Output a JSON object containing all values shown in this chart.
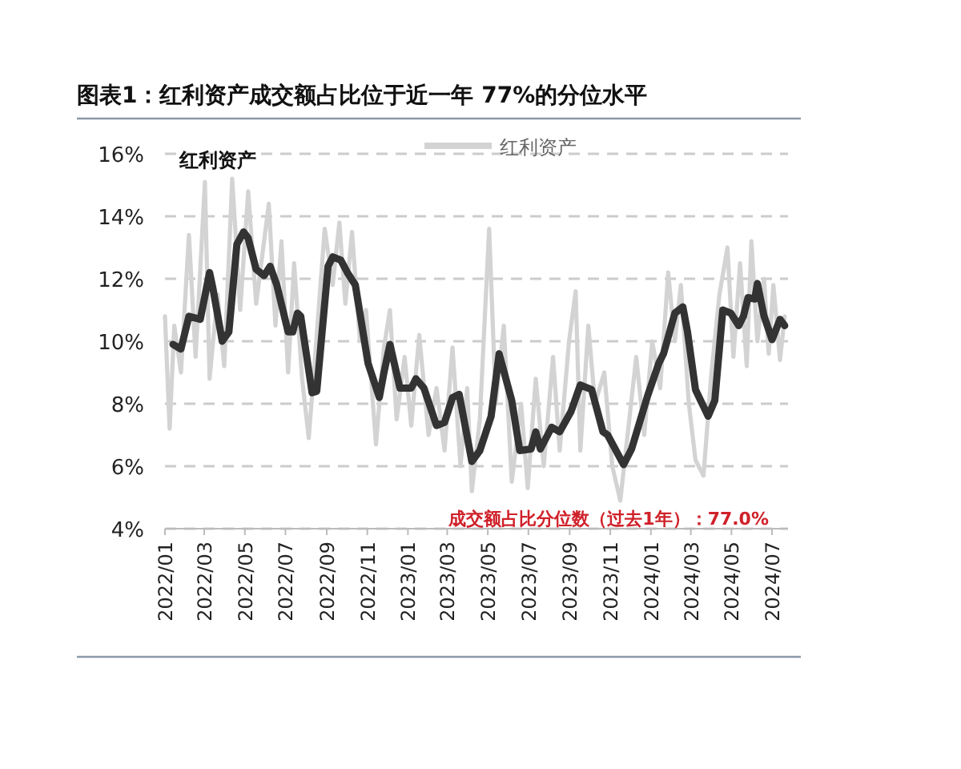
{
  "chart_data": {
    "type": "line",
    "title": "图表1：红利资产成交额占比位于近一年 77%的分位水平",
    "annotations": [
      "红利资产",
      "成交额占比分位数（过去1年）：77.0%"
    ],
    "xlim": [
      "2022-01-01",
      "2024-07-25"
    ],
    "xticks": [
      {
        "value": "2022-01-01",
        "label": "2022/01"
      },
      {
        "value": "2022-03-01",
        "label": "2022/03"
      },
      {
        "value": "2022-05-01",
        "label": "2022/05"
      },
      {
        "value": "2022-07-01",
        "label": "2022/07"
      },
      {
        "value": "2022-09-01",
        "label": "2022/09"
      },
      {
        "value": "2022-11-01",
        "label": "2022/11"
      },
      {
        "value": "2023-01-01",
        "label": "2023/01"
      },
      {
        "value": "2023-03-01",
        "label": "2023/03"
      },
      {
        "value": "2023-05-01",
        "label": "2023/05"
      },
      {
        "value": "2023-07-01",
        "label": "2023/07"
      },
      {
        "value": "2023-09-01",
        "label": "2023/09"
      },
      {
        "value": "2023-11-01",
        "label": "2023/11"
      },
      {
        "value": "2024-01-01",
        "label": "2024/01"
      },
      {
        "value": "2024-03-01",
        "label": "2024/03"
      },
      {
        "value": "2024-05-01",
        "label": "2024/05"
      },
      {
        "value": "2024-07-01",
        "label": "2024/07"
      }
    ],
    "ylim": [
      4,
      16
    ],
    "yticks": [
      {
        "value": 4,
        "label": "4%"
      },
      {
        "value": 6,
        "label": "6%"
      },
      {
        "value": 8,
        "label": "8%"
      },
      {
        "value": 10,
        "label": "10%"
      },
      {
        "value": 12,
        "label": "12%"
      },
      {
        "value": 14,
        "label": "14%"
      },
      {
        "value": 16,
        "label": "16%"
      }
    ],
    "grid": "y",
    "legend": "top",
    "line_style": "solid",
    "series": [
      {
        "name": "红利资产",
        "color": "#d3d3d3",
        "x": [
          "2022-01-01",
          "2022-01-08",
          "2022-01-15",
          "2022-01-25",
          "2022-02-06",
          "2022-02-16",
          "2022-03-02",
          "2022-03-09",
          "2022-03-21",
          "2022-03-31",
          "2022-04-12",
          "2022-04-24",
          "2022-05-06",
          "2022-05-18",
          "2022-06-06",
          "2022-06-16",
          "2022-06-25",
          "2022-07-05",
          "2022-07-14",
          "2022-07-26",
          "2022-08-05",
          "2022-08-17",
          "2022-08-29",
          "2022-09-10",
          "2022-09-20",
          "2022-09-29",
          "2022-10-09",
          "2022-10-21",
          "2022-10-30",
          "2022-11-14",
          "2022-11-26",
          "2022-12-05",
          "2022-12-15",
          "2022-12-27",
          "2023-01-06",
          "2023-01-18",
          "2023-02-01",
          "2023-02-13",
          "2023-02-25",
          "2023-03-09",
          "2023-03-21",
          "2023-03-31",
          "2023-04-07",
          "2023-04-19",
          "2023-05-03",
          "2023-05-13",
          "2023-05-25",
          "2023-06-06",
          "2023-06-20",
          "2023-06-30",
          "2023-07-12",
          "2023-07-24",
          "2023-08-07",
          "2023-08-17",
          "2023-08-31",
          "2023-09-10",
          "2023-09-17",
          "2023-09-29",
          "2023-10-09",
          "2023-10-23",
          "2023-11-04",
          "2023-11-16",
          "2023-11-28",
          "2023-12-10",
          "2023-12-22",
          "2024-01-03",
          "2024-01-15",
          "2024-01-27",
          "2024-02-06",
          "2024-02-15",
          "2024-02-27",
          "2024-03-08",
          "2024-03-20",
          "2024-04-01",
          "2024-04-13",
          "2024-04-25",
          "2024-05-04",
          "2024-05-14",
          "2024-05-24",
          "2024-05-31",
          "2024-06-09",
          "2024-06-19",
          "2024-06-26",
          "2024-07-03",
          "2024-07-13",
          "2024-07-20"
        ],
        "values": [
          10.8,
          7.2,
          10.5,
          9.0,
          13.4,
          9.5,
          15.1,
          8.8,
          11.5,
          9.2,
          15.2,
          11.0,
          14.8,
          11.2,
          14.4,
          10.5,
          13.2,
          9.0,
          12.5,
          8.8,
          6.9,
          10.2,
          13.6,
          11.8,
          13.8,
          11.2,
          13.5,
          10.0,
          11.0,
          6.7,
          9.8,
          11.0,
          7.5,
          9.5,
          7.3,
          10.2,
          7.0,
          8.5,
          6.5,
          9.8,
          6.0,
          8.5,
          5.2,
          7.5,
          13.6,
          8.0,
          10.5,
          5.5,
          8.0,
          5.3,
          8.8,
          6.0,
          9.5,
          6.5,
          10.0,
          11.6,
          6.5,
          10.5,
          8.0,
          9.0,
          6.0,
          4.9,
          7.2,
          9.5,
          7.0,
          10.0,
          8.5,
          12.2,
          10.0,
          11.8,
          8.0,
          6.2,
          5.7,
          9.0,
          11.5,
          13.0,
          9.5,
          12.5,
          9.2,
          13.2,
          10.0,
          12.0,
          9.6,
          11.8,
          9.4,
          10.8
        ]
      },
      {
        "color": "#333333",
        "x": [
          "2022-01-13",
          "2022-01-25",
          "2022-02-06",
          "2022-02-23",
          "2022-03-09",
          "2022-03-14",
          "2022-03-28",
          "2022-04-07",
          "2022-04-19",
          "2022-04-29",
          "2022-05-06",
          "2022-05-18",
          "2022-05-30",
          "2022-06-08",
          "2022-06-18",
          "2022-07-05",
          "2022-07-12",
          "2022-07-19",
          "2022-07-24",
          "2022-08-10",
          "2022-08-17",
          "2022-09-03",
          "2022-09-10",
          "2022-09-22",
          "2022-10-02",
          "2022-10-14",
          "2022-11-02",
          "2022-11-19",
          "2022-11-26",
          "2022-12-05",
          "2022-12-20",
          "2023-01-06",
          "2023-01-13",
          "2023-01-25",
          "2023-02-13",
          "2023-02-25",
          "2023-03-09",
          "2023-03-19",
          "2023-04-07",
          "2023-04-19",
          "2023-05-06",
          "2023-05-18",
          "2023-06-06",
          "2023-06-18",
          "2023-07-05",
          "2023-07-12",
          "2023-07-19",
          "2023-08-05",
          "2023-08-17",
          "2023-09-03",
          "2023-09-17",
          "2023-10-04",
          "2023-10-21",
          "2023-10-28",
          "2023-11-21",
          "2023-12-03",
          "2023-12-27",
          "2024-01-13",
          "2024-01-20",
          "2024-02-06",
          "2024-02-18",
          "2024-02-25",
          "2024-03-08",
          "2024-03-27",
          "2024-04-06",
          "2024-04-18",
          "2024-04-30",
          "2024-05-12",
          "2024-05-19",
          "2024-05-26",
          "2024-06-05",
          "2024-06-09",
          "2024-06-19",
          "2024-07-01",
          "2024-07-13",
          "2024-07-20"
        ],
        "values": [
          9.9,
          9.75,
          10.8,
          10.7,
          12.2,
          11.7,
          10.0,
          10.3,
          13.1,
          13.5,
          13.3,
          12.3,
          12.1,
          12.4,
          11.8,
          10.3,
          10.3,
          10.9,
          10.8,
          8.35,
          8.4,
          12.4,
          12.7,
          12.6,
          12.2,
          11.8,
          9.3,
          8.2,
          9.0,
          9.9,
          8.5,
          8.5,
          8.8,
          8.5,
          7.3,
          7.4,
          8.2,
          8.3,
          6.15,
          6.5,
          7.6,
          9.6,
          8.1,
          6.5,
          6.55,
          7.1,
          6.55,
          7.25,
          7.1,
          7.75,
          8.6,
          8.45,
          7.1,
          7.0,
          6.05,
          6.55,
          8.25,
          9.3,
          9.6,
          10.9,
          11.1,
          10.3,
          8.45,
          7.6,
          8.1,
          11.0,
          10.9,
          10.5,
          10.8,
          11.4,
          11.35,
          11.85,
          10.8,
          10.05,
          10.7,
          10.5
        ]
      }
    ]
  }
}
